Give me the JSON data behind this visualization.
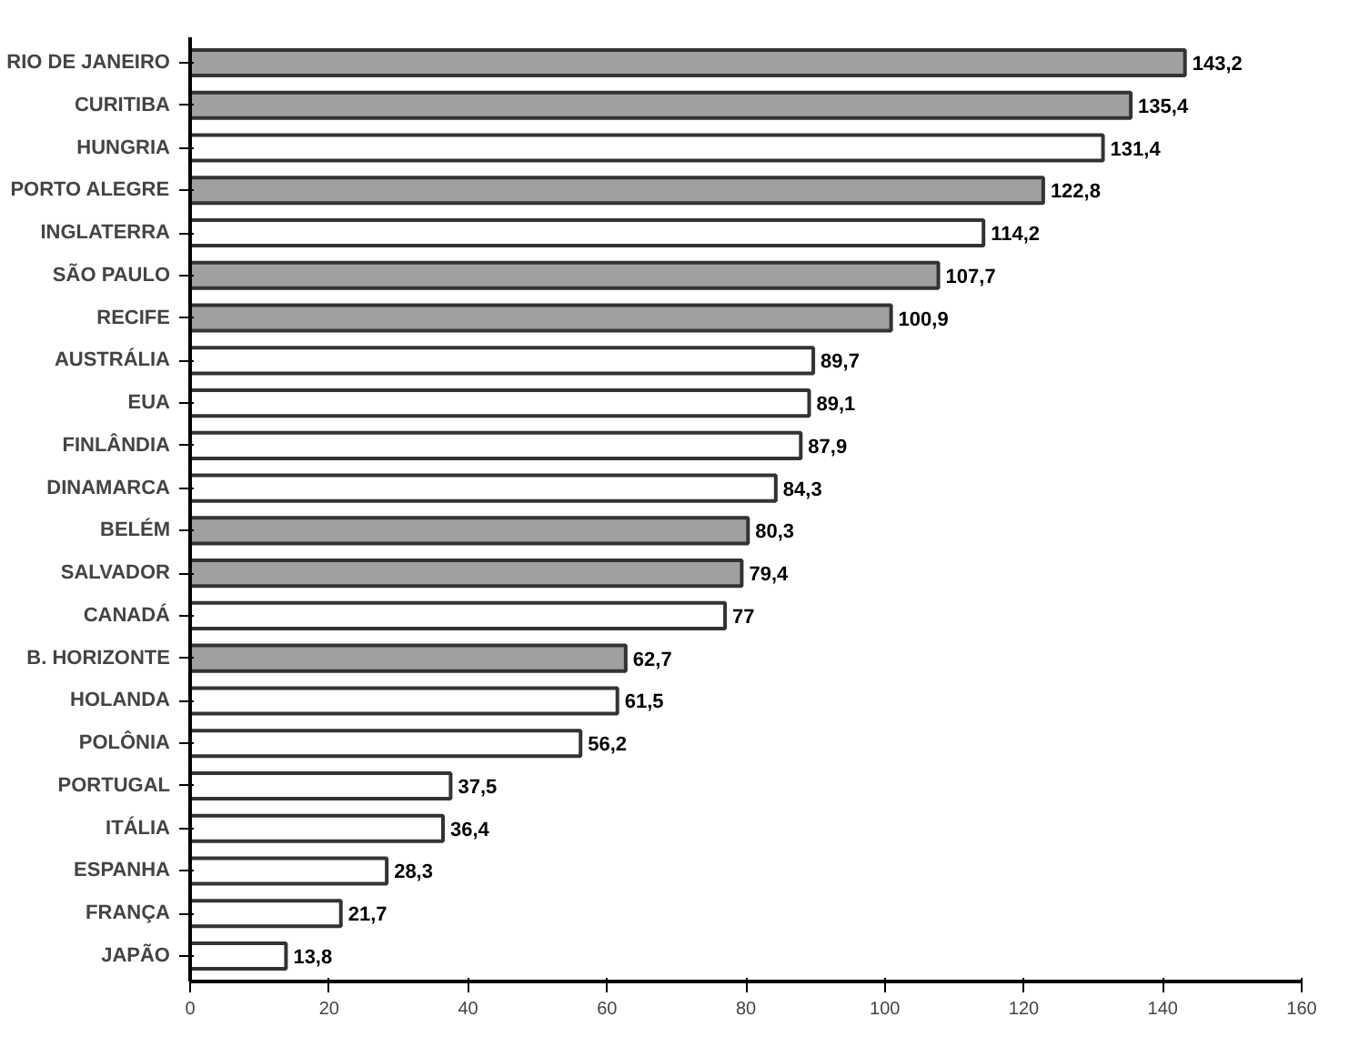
{
  "chart_data": {
    "type": "bar",
    "orientation": "horizontal",
    "categories": [
      "RIO DE JANEIRO",
      "CURITIBA",
      "HUNGRIA",
      "PORTO ALEGRE",
      "INGLATERRA",
      "SÃO PAULO",
      "RECIFE",
      "AUSTRÁLIA",
      "EUA",
      "FINLÂNDIA",
      "DINAMARCA",
      "BELÉM",
      "SALVADOR",
      "CANADÁ",
      "B. HORIZONTE",
      "HOLANDA",
      "POLÔNIA",
      "PORTUGAL",
      "ITÁLIA",
      "ESPANHA",
      "FRANÇA",
      "JAPÃO"
    ],
    "values": [
      143.2,
      135.4,
      131.4,
      122.8,
      114.2,
      107.7,
      100.9,
      89.7,
      89.1,
      87.9,
      84.3,
      80.3,
      79.4,
      77,
      62.7,
      61.5,
      56.2,
      37.5,
      36.4,
      28.3,
      21.7,
      13.8
    ],
    "value_labels": [
      "143,2",
      "135,4",
      "131,4",
      "122,8",
      "114,2",
      "107,7",
      "100,9",
      "89,7",
      "89,1",
      "87,9",
      "84,3",
      "80,3",
      "79,4",
      "77",
      "62,7",
      "61,5",
      "56,2",
      "37,5",
      "36,4",
      "28,3",
      "21,7",
      "13,8"
    ],
    "colors": [
      "#a0a0a0",
      "#a0a0a0",
      "#ffffff",
      "#a0a0a0",
      "#ffffff",
      "#a0a0a0",
      "#a0a0a0",
      "#ffffff",
      "#ffffff",
      "#ffffff",
      "#ffffff",
      "#a0a0a0",
      "#a0a0a0",
      "#ffffff",
      "#a0a0a0",
      "#ffffff",
      "#ffffff",
      "#ffffff",
      "#ffffff",
      "#ffffff",
      "#ffffff",
      "#ffffff"
    ],
    "xlim": [
      0,
      160
    ],
    "xticks": [
      0,
      20,
      40,
      60,
      80,
      100,
      120,
      140,
      160
    ],
    "grid": false
  }
}
